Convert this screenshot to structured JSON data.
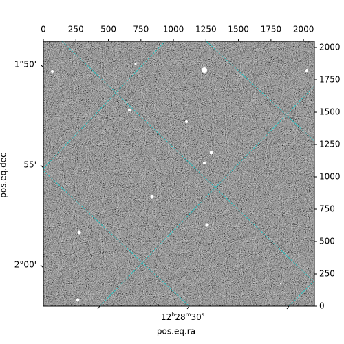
{
  "chart_data": {
    "type": "image",
    "xlabel": "pos.eq.ra",
    "ylabel": "pos.eq.dec",
    "xlim": [
      0,
      2084
    ],
    "ylim": [
      0,
      2048
    ],
    "xticks": [
      0,
      250,
      500,
      750,
      1000,
      1250,
      1500,
      1750,
      2000
    ],
    "yticks": [
      0,
      250,
      500,
      750,
      1000,
      1250,
      1500,
      1750,
      2000
    ],
    "dec_tick_labels": [
      "1°50'",
      "55'",
      "2°00'"
    ],
    "ra_tick_label": [
      "12",
      "h",
      "28",
      "m",
      "30",
      "s"
    ]
  }
}
